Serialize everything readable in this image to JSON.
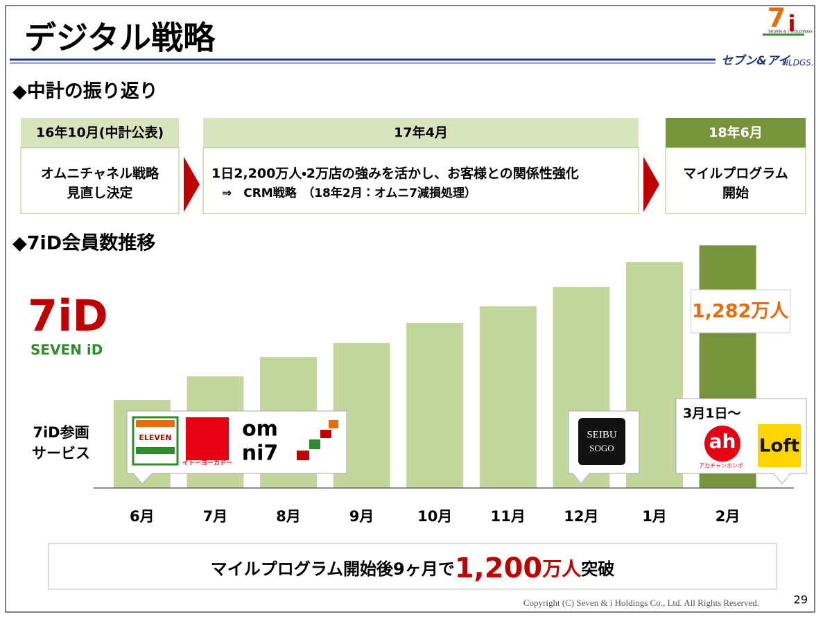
{
  "header": {
    "title": "デジタル戦略",
    "logo_top": "SEVEN & i HOLDINGS",
    "logo_name": "セブン&アイ",
    "logo_suffix": "HLDGS."
  },
  "review": {
    "heading": "◆中計の振り返り",
    "steps": [
      {
        "date": "16年10月(中計公表)",
        "lines": [
          "オムニチャネル戦略",
          "見直し決定"
        ]
      },
      {
        "date": "17年4月",
        "lines": [
          "1日2,200万人・2万店の強みを活かし、お客様との関係性強化",
          "⇒　CRM戦略　（18年2月：オムニ7減損処理）"
        ]
      },
      {
        "date": "18年6月",
        "lines": [
          "マイルプログラム",
          "開始"
        ]
      }
    ]
  },
  "chart_data": {
    "type": "bar",
    "title": "◆7iD会員数推移",
    "categories": [
      "6月",
      "7月",
      "8月",
      "9月",
      "10月",
      "11月",
      "12月",
      "1月",
      "2月"
    ],
    "values": [
      465,
      590,
      692,
      766,
      872,
      960,
      1062,
      1194,
      1282
    ],
    "value_labels": [
      null,
      null,
      null,
      null,
      null,
      null,
      null,
      null,
      "1,282万人"
    ],
    "color": "#c3d69b",
    "highlight_color": "#77933c"
  },
  "services": {
    "label": [
      "7iD参画",
      "サービス"
    ],
    "seven_id_logo": [
      "7iD",
      "SEVEN iD"
    ],
    "eleven": "ELEVEN",
    "itoyokado": "イトーヨーカドー",
    "omni": [
      "om",
      "ni7"
    ],
    "seibu_sogo": [
      "SEIBU",
      "SOGO"
    ],
    "from_date": "3月1日～",
    "akachan": [
      "ah",
      "アカチャンホンポ"
    ],
    "loft": "Loft"
  },
  "summary": {
    "before": "マイルプログラム開始後9ヶ月で",
    "number": "1,200",
    "unit": "万人",
    "after": "突破"
  },
  "footer": {
    "copyright": "Copyright (C)  Seven & i Holdings Co., Ltd.  All Rights Reserved.",
    "page": "29"
  }
}
